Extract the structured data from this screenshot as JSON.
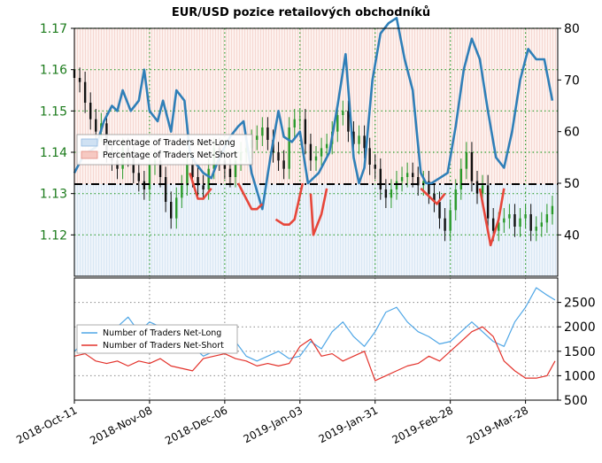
{
  "chart_data": [
    {
      "type": "line",
      "panel": "top",
      "title": "EUR/USD pozice retailových obchodníků",
      "xlabel": "",
      "x_ticks": [
        "2018-Oct-11",
        "2018-Nov-08",
        "2018-Dec-06",
        "2019-Jan-03",
        "2019-Jan-31",
        "2019-Feb-28",
        "2019-Mar-28"
      ],
      "ylim_left_price": [
        1.11,
        1.17
      ],
      "y_ticks_left_price": [
        "1.12",
        "1.13",
        "1.14",
        "1.15",
        "1.16",
        "1.17"
      ],
      "ylim_right_percent": [
        32,
        80
      ],
      "y_ticks_right_percent": [
        "40",
        "50",
        "60",
        "70",
        "80"
      ],
      "reference_line_percent": 50,
      "legend": {
        "placement": "upper-left",
        "entries": [
          "Percentage of Traders Net-Long",
          "Percentage of Traders Net-Short"
        ]
      },
      "series": [
        {
          "name": "Percentage of Traders Net-Long",
          "color": "#2f7fb8",
          "note_points": "days since 2018-Oct-11 : percent",
          "x": [
            0,
            3,
            5,
            8,
            11,
            14,
            16,
            18,
            21,
            24,
            26,
            28,
            31,
            33,
            36,
            38,
            41,
            43,
            45,
            48,
            51,
            54,
            58,
            61,
            63,
            66,
            70,
            73,
            76,
            78,
            81,
            84,
            87,
            91,
            95,
            98,
            101,
            104,
            106,
            108,
            111,
            114,
            117,
            120,
            123,
            126,
            129,
            131,
            133,
            136,
            139,
            142,
            145,
            148,
            151,
            154,
            157,
            160,
            163,
            166,
            169,
            172,
            175,
            178
          ],
          "y": [
            52,
            55,
            56,
            57,
            62,
            65,
            64,
            68,
            64,
            66,
            72,
            64,
            62,
            66,
            60,
            68,
            66,
            56,
            54,
            52,
            51,
            55,
            59,
            61,
            62,
            52,
            45,
            55,
            64,
            59,
            58,
            60,
            50,
            52,
            56,
            65,
            75,
            55,
            50,
            53,
            70,
            79,
            81,
            82,
            74,
            68,
            52,
            50,
            50,
            51,
            52,
            61,
            72,
            78,
            74,
            64,
            55,
            53,
            60,
            70,
            76,
            74,
            74,
            66
          ]
        },
        {
          "name": "Percentage of Traders Net-Short",
          "color": "#e7463a",
          "note_points": "segments where net-long below 50%",
          "segments": [
            [
              [
                43,
                52
              ],
              [
                46,
                47
              ],
              [
                48,
                47
              ],
              [
                51,
                49
              ]
            ],
            [
              [
                61,
                50
              ],
              [
                66,
                45
              ],
              [
                68,
                45
              ],
              [
                70,
                46
              ]
            ],
            [
              [
                75,
                43
              ],
              [
                78,
                42
              ],
              [
                80,
                42
              ],
              [
                82,
                43
              ],
              [
                85,
                50
              ]
            ],
            [
              [
                88,
                48
              ],
              [
                89,
                40
              ],
              [
                92,
                44
              ],
              [
                94,
                49
              ]
            ],
            [
              [
                129,
                49
              ],
              [
                135,
                46
              ],
              [
                138,
                48
              ]
            ],
            [
              [
                151,
                49
              ],
              [
                155,
                38
              ],
              [
                158,
                43
              ],
              [
                160,
                49
              ]
            ]
          ]
        }
      ]
    },
    {
      "type": "line",
      "panel": "bottom",
      "ylim": [
        500,
        3000
      ],
      "y_ticks_right": [
        "500",
        "1000",
        "1500",
        "2000",
        "2500"
      ],
      "legend": {
        "placement": "left",
        "entries": [
          "Number of Traders Net-Long",
          "Number of Traders Net-Short"
        ]
      },
      "series": [
        {
          "name": "Number of Traders Net-Long",
          "color": "#4ea6e6",
          "x": [
            0,
            4,
            8,
            12,
            16,
            20,
            24,
            28,
            32,
            36,
            40,
            44,
            48,
            52,
            56,
            60,
            64,
            68,
            72,
            76,
            80,
            84,
            88,
            92,
            96,
            100,
            104,
            108,
            112,
            116,
            120,
            124,
            128,
            132,
            136,
            140,
            144,
            148,
            152,
            156,
            160,
            164,
            168,
            172,
            176,
            179
          ],
          "y": [
            1500,
            1700,
            1900,
            1800,
            2000,
            2200,
            1900,
            2100,
            2000,
            1700,
            1800,
            1600,
            1400,
            1500,
            1600,
            1700,
            1400,
            1300,
            1400,
            1500,
            1350,
            1400,
            1700,
            1550,
            1900,
            2100,
            1800,
            1600,
            1900,
            2300,
            2400,
            2100,
            1900,
            1800,
            1650,
            1700,
            1900,
            2100,
            1900,
            1700,
            1600,
            2100,
            2400,
            2800,
            2650,
            2550
          ]
        },
        {
          "name": "Number of Traders Net-Short",
          "color": "#e3322b",
          "x": [
            0,
            4,
            8,
            12,
            16,
            20,
            24,
            28,
            32,
            36,
            40,
            44,
            48,
            52,
            56,
            60,
            64,
            68,
            72,
            76,
            80,
            84,
            88,
            92,
            96,
            100,
            104,
            108,
            112,
            116,
            120,
            124,
            128,
            132,
            136,
            140,
            144,
            148,
            152,
            156,
            160,
            164,
            168,
            172,
            176,
            179
          ],
          "y": [
            1400,
            1450,
            1300,
            1250,
            1300,
            1200,
            1300,
            1250,
            1350,
            1200,
            1150,
            1100,
            1350,
            1400,
            1450,
            1350,
            1300,
            1200,
            1250,
            1200,
            1250,
            1600,
            1750,
            1400,
            1450,
            1300,
            1400,
            1500,
            900,
            1000,
            1100,
            1200,
            1250,
            1400,
            1300,
            1500,
            1700,
            1900,
            2000,
            1800,
            1300,
            1100,
            950,
            950,
            1000,
            1300
          ]
        }
      ]
    }
  ],
  "price_bars": {
    "note": "EUR/USD daily price candles (closes), days since 2018-Oct-11",
    "x": [
      0,
      2,
      4,
      6,
      8,
      10,
      12,
      14,
      16,
      18,
      20,
      22,
      24,
      26,
      28,
      30,
      32,
      34,
      36,
      38,
      40,
      42,
      44,
      46,
      48,
      50,
      52,
      54,
      56,
      58,
      60,
      62,
      64,
      66,
      68,
      70,
      72,
      74,
      76,
      78,
      80,
      82,
      84,
      86,
      88,
      90,
      92,
      94,
      96,
      98,
      100,
      102,
      104,
      106,
      108,
      110,
      112,
      114,
      116,
      118,
      120,
      122,
      124,
      126,
      128,
      130,
      132,
      134,
      136,
      138,
      140,
      142,
      144,
      146,
      148,
      150,
      152,
      154,
      156,
      158,
      160,
      162,
      164,
      166,
      168,
      170,
      172,
      174,
      176,
      178
    ],
    "close": [
      1.158,
      1.157,
      1.152,
      1.148,
      1.145,
      1.147,
      1.14,
      1.138,
      1.136,
      1.141,
      1.139,
      1.135,
      1.133,
      1.131,
      1.137,
      1.138,
      1.134,
      1.128,
      1.124,
      1.129,
      1.132,
      1.137,
      1.134,
      1.132,
      1.131,
      1.136,
      1.141,
      1.138,
      1.136,
      1.134,
      1.138,
      1.14,
      1.141,
      1.143,
      1.144,
      1.146,
      1.143,
      1.14,
      1.138,
      1.136,
      1.146,
      1.148,
      1.148,
      1.142,
      1.138,
      1.139,
      1.141,
      1.142,
      1.145,
      1.149,
      1.15,
      1.145,
      1.142,
      1.144,
      1.141,
      1.137,
      1.136,
      1.131,
      1.129,
      1.131,
      1.133,
      1.134,
      1.135,
      1.134,
      1.132,
      1.133,
      1.13,
      1.128,
      1.124,
      1.121,
      1.126,
      1.131,
      1.136,
      1.14,
      1.133,
      1.13,
      1.132,
      1.124,
      1.121,
      1.123,
      1.124,
      1.125,
      1.122,
      1.124,
      1.125,
      1.121,
      1.122,
      1.123,
      1.125,
      1.127
    ]
  }
}
